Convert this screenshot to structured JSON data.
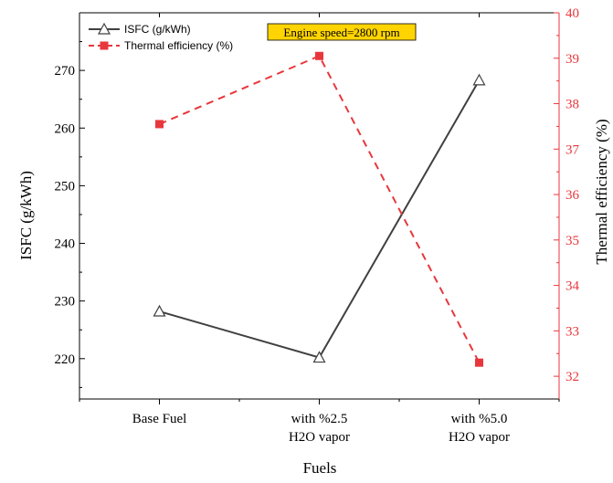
{
  "chart_data": {
    "type": "line",
    "categories": [
      "Base Fuel",
      "with %2.5\nH2O vapor",
      "with %5.0\nH2O vapor"
    ],
    "xlabel": "Fuels",
    "ylabel": "ISFC (g/kWh)",
    "y2label": "Thermal efficiency (%)",
    "annotation": "Engine speed=2800 rpm",
    "ylim": [
      213,
      280
    ],
    "y2lim": [
      31.5,
      40
    ],
    "yticks": [
      220,
      230,
      240,
      250,
      260,
      270
    ],
    "y2ticks": [
      32,
      33,
      34,
      35,
      36,
      37,
      38,
      39,
      40
    ],
    "grid": false,
    "legend_position": "top-left",
    "series": [
      {
        "name": "ISFC (g/kWh)",
        "axis": "left",
        "values": [
          228.2,
          220.2,
          268.3
        ],
        "color": "#404040",
        "marker": "triangle-open",
        "line": "solid"
      },
      {
        "name": "Thermal efficiency (%)",
        "axis": "right",
        "values": [
          37.55,
          39.05,
          32.3
        ],
        "color": "#e8373c",
        "marker": "square-filled",
        "line": "dashed"
      }
    ],
    "colors": {
      "left_axis": "#000000",
      "right_axis": "#e8373c",
      "annotation_bg": "#ffd400"
    }
  }
}
